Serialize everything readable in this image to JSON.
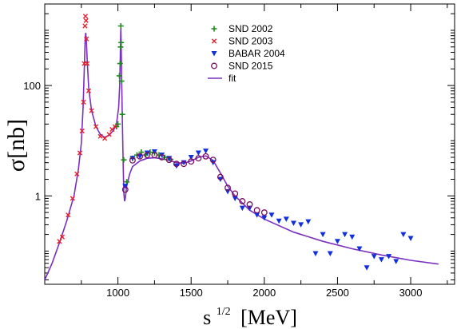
{
  "chart_data": {
    "type": "scatter",
    "x_axis": {
      "scale": "linear",
      "range": [
        500,
        3300
      ],
      "ticks": [
        1000,
        1500,
        2000,
        2500,
        3000
      ],
      "tick_labels": [
        "1000",
        "1500",
        "2000",
        "2500",
        "3000"
      ],
      "label_main": "s",
      "label_sup": "1/2",
      "label_unit": "[MeV]"
    },
    "y_axis": {
      "scale": "log",
      "range": [
        0.025,
        3000
      ],
      "ticks": [
        1,
        100
      ],
      "tick_labels": [
        "1",
        "100"
      ],
      "label": "σ[nb]"
    },
    "grid": false,
    "legend_position": "top-center",
    "series": [
      {
        "name": "SND 2002",
        "marker": "plus",
        "color": "#1f8a1f",
        "points": [
          [
            990,
            18
          ],
          [
            1000,
            20
          ],
          [
            1010,
            150
          ],
          [
            1015,
            250
          ],
          [
            1018,
            500
          ],
          [
            1020,
            1200
          ],
          [
            1022,
            600
          ],
          [
            1025,
            120
          ],
          [
            1030,
            30
          ],
          [
            1040,
            4.5
          ],
          [
            1060,
            1.8
          ],
          [
            1100,
            4.8
          ],
          [
            1130,
            5.5
          ],
          [
            1160,
            6.2
          ],
          [
            1190,
            5.5
          ],
          [
            1220,
            6.2
          ],
          [
            1250,
            6
          ],
          [
            1280,
            5.5
          ],
          [
            1320,
            5
          ],
          [
            1360,
            4.6
          ]
        ]
      },
      {
        "name": "SND 2003",
        "marker": "x",
        "color": "#e8202a",
        "points": [
          [
            600,
            0.15
          ],
          [
            620,
            0.18
          ],
          [
            660,
            0.45
          ],
          [
            690,
            0.9
          ],
          [
            720,
            2.5
          ],
          [
            740,
            6
          ],
          [
            755,
            15
          ],
          [
            765,
            50
          ],
          [
            770,
            250
          ],
          [
            775,
            1200
          ],
          [
            778,
            1800
          ],
          [
            782,
            1500
          ],
          [
            785,
            700
          ],
          [
            790,
            250
          ],
          [
            800,
            80
          ],
          [
            820,
            35
          ],
          [
            850,
            18
          ],
          [
            880,
            12
          ],
          [
            910,
            11
          ],
          [
            940,
            13
          ],
          [
            960,
            16
          ],
          [
            980,
            18
          ]
        ]
      },
      {
        "name": "BABAR  2004",
        "marker": "triangle-down",
        "color": "#1030e0",
        "points": [
          [
            1050,
            1.5
          ],
          [
            1100,
            4.8
          ],
          [
            1150,
            5.2
          ],
          [
            1200,
            6
          ],
          [
            1250,
            6.3
          ],
          [
            1300,
            5.5
          ],
          [
            1350,
            4.8
          ],
          [
            1400,
            3.5
          ],
          [
            1450,
            4
          ],
          [
            1500,
            5
          ],
          [
            1550,
            6
          ],
          [
            1600,
            6.5
          ],
          [
            1650,
            4
          ],
          [
            1700,
            2
          ],
          [
            1750,
            1.2
          ],
          [
            1800,
            0.9
          ],
          [
            1850,
            0.6
          ],
          [
            1900,
            0.6
          ],
          [
            1950,
            0.45
          ],
          [
            2000,
            0.4
          ],
          [
            2050,
            0.45
          ],
          [
            2100,
            0.35
          ],
          [
            2150,
            0.38
          ],
          [
            2200,
            0.32
          ],
          [
            2250,
            0.3
          ],
          [
            2300,
            0.34
          ],
          [
            2350,
            0.09
          ],
          [
            2400,
            0.2
          ],
          [
            2450,
            0.09
          ],
          [
            2500,
            0.15
          ],
          [
            2550,
            0.2
          ],
          [
            2600,
            0.18
          ],
          [
            2650,
            0.11
          ],
          [
            2700,
            0.05
          ],
          [
            2750,
            0.08
          ],
          [
            2800,
            0.07
          ],
          [
            2850,
            0.08
          ],
          [
            2900,
            0.065
          ],
          [
            2950,
            0.2
          ],
          [
            3000,
            0.17
          ]
        ]
      },
      {
        "name": "SND 2015",
        "marker": "circle",
        "color": "#7a1060",
        "points": [
          [
            1050,
            1.3
          ],
          [
            1100,
            4.4
          ],
          [
            1150,
            5.2
          ],
          [
            1200,
            5.5
          ],
          [
            1250,
            5.5
          ],
          [
            1300,
            5
          ],
          [
            1350,
            4.5
          ],
          [
            1400,
            3.8
          ],
          [
            1450,
            3.8
          ],
          [
            1500,
            4.2
          ],
          [
            1550,
            4.8
          ],
          [
            1600,
            5.2
          ],
          [
            1650,
            4.5
          ],
          [
            1700,
            2.2
          ],
          [
            1750,
            1.4
          ],
          [
            1800,
            1.1
          ],
          [
            1850,
            0.8
          ],
          [
            1900,
            0.7
          ],
          [
            1950,
            0.55
          ],
          [
            2000,
            0.5
          ]
        ]
      }
    ],
    "fit": {
      "name": "fit",
      "color": "#7b2fc0",
      "points": [
        [
          500,
          0.03
        ],
        [
          550,
          0.06
        ],
        [
          600,
          0.14
        ],
        [
          650,
          0.35
        ],
        [
          700,
          1.0
        ],
        [
          730,
          3.0
        ],
        [
          750,
          9
        ],
        [
          762,
          40
        ],
        [
          770,
          200
        ],
        [
          776,
          700
        ],
        [
          780,
          900
        ],
        [
          784,
          700
        ],
        [
          790,
          300
        ],
        [
          800,
          90
        ],
        [
          820,
          35
        ],
        [
          850,
          18
        ],
        [
          880,
          13
        ],
        [
          910,
          11.5
        ],
        [
          940,
          12.5
        ],
        [
          970,
          15.5
        ],
        [
          990,
          20
        ],
        [
          1005,
          40
        ],
        [
          1012,
          100
        ],
        [
          1016,
          300
        ],
        [
          1019,
          900
        ],
        [
          1020,
          1100
        ],
        [
          1022,
          600
        ],
        [
          1026,
          100
        ],
        [
          1030,
          25
        ],
        [
          1035,
          5
        ],
        [
          1040,
          1.2
        ],
        [
          1045,
          0.8
        ],
        [
          1050,
          0.9
        ],
        [
          1060,
          1.5
        ],
        [
          1080,
          2.5
        ],
        [
          1100,
          3.4
        ],
        [
          1150,
          4.3
        ],
        [
          1200,
          4.8
        ],
        [
          1250,
          4.9
        ],
        [
          1300,
          4.7
        ],
        [
          1350,
          4.4
        ],
        [
          1400,
          4.0
        ],
        [
          1450,
          3.9
        ],
        [
          1500,
          4.3
        ],
        [
          1550,
          5.0
        ],
        [
          1600,
          5.3
        ],
        [
          1650,
          4.4
        ],
        [
          1700,
          2.6
        ],
        [
          1750,
          1.5
        ],
        [
          1800,
          1.0
        ],
        [
          1900,
          0.55
        ],
        [
          2000,
          0.38
        ],
        [
          2200,
          0.22
        ],
        [
          2400,
          0.15
        ],
        [
          2600,
          0.11
        ],
        [
          2800,
          0.085
        ],
        [
          3000,
          0.068
        ],
        [
          3190,
          0.058
        ]
      ]
    }
  }
}
